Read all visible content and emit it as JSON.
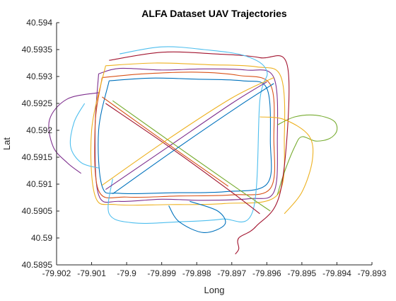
{
  "chart_data": {
    "type": "line",
    "title": "ALFA Dataset UAV Trajectories",
    "xlabel": "Long",
    "ylabel": "Lat",
    "xlim": [
      -79.902,
      -79.893
    ],
    "ylim": [
      40.5895,
      40.594
    ],
    "xticks": [
      -79.902,
      -79.901,
      -79.9,
      -79.899,
      -79.898,
      -79.897,
      -79.896,
      -79.895,
      -79.894,
      -79.893
    ],
    "xtick_labels": [
      "-79.902",
      "-79.901",
      "-79.9",
      "-79.899",
      "-79.898",
      "-79.897",
      "-79.896",
      "-79.895",
      "-79.894",
      "-79.893"
    ],
    "yticks": [
      40.5895,
      40.59,
      40.5905,
      40.591,
      40.5915,
      40.592,
      40.5925,
      40.593,
      40.5935,
      40.594
    ],
    "ytick_labels": [
      "40.5895",
      "40.59",
      "40.5905",
      "40.591",
      "40.5915",
      "40.592",
      "40.5925",
      "40.593",
      "40.5935",
      "40.594"
    ],
    "grid": false,
    "legend": "none",
    "series": [
      {
        "color": "#7E2F8E",
        "x": [
          -79.9008,
          -79.9002,
          -79.899,
          -79.8978,
          -79.8966,
          -79.8958,
          -79.8957,
          -79.8958,
          -79.8965,
          -79.8978,
          -79.899,
          -79.9002,
          -79.9008,
          -79.9009,
          -79.9008
        ],
        "y": [
          40.59305,
          40.59315,
          40.59312,
          40.59314,
          40.59312,
          40.59298,
          40.5918,
          40.59085,
          40.59073,
          40.5907,
          40.59072,
          40.59068,
          40.5908,
          40.592,
          40.59305
        ]
      },
      {
        "color": "#D95319",
        "x": [
          -79.9007,
          -79.8995,
          -79.898,
          -79.8968,
          -79.8959,
          -79.8958,
          -79.8959,
          -79.897,
          -79.8985,
          -79.9,
          -79.9008,
          -79.9009,
          -79.9007
        ],
        "y": [
          40.59298,
          40.59305,
          40.59308,
          40.59302,
          40.59285,
          40.59185,
          40.59092,
          40.5908,
          40.59078,
          40.59076,
          40.59088,
          40.5921,
          40.59298
        ]
      },
      {
        "color": "#EDB120",
        "x": [
          -79.9006,
          -79.8992,
          -79.8977,
          -79.8963,
          -79.8956,
          -79.8955,
          -79.8957,
          -79.8972,
          -79.8988,
          -79.9003,
          -79.9009,
          -79.901,
          -79.9006
        ],
        "y": [
          40.5932,
          40.59325,
          40.59322,
          40.59318,
          40.593,
          40.5919,
          40.5908,
          40.59064,
          40.59062,
          40.59062,
          40.59078,
          40.592,
          40.5932
        ]
      },
      {
        "color": "#0072BD",
        "x": [
          -79.9005,
          -79.8993,
          -79.898,
          -79.8967,
          -79.896,
          -79.8959,
          -79.896,
          -79.8972,
          -79.8987,
          -79.9002,
          -79.9007,
          -79.9008,
          -79.9005
        ],
        "y": [
          40.59292,
          40.59297,
          40.59295,
          40.59292,
          40.59278,
          40.5918,
          40.591,
          40.59086,
          40.59084,
          40.59083,
          40.59096,
          40.592,
          40.59292
        ]
      },
      {
        "color": "#77AC30",
        "x": [
          -79.8957,
          -79.8952,
          -79.8946,
          -79.8941,
          -79.894,
          -79.8942,
          -79.8946,
          -79.895,
          -79.8952,
          -79.8955,
          -79.8957
        ],
        "y": [
          40.5921,
          40.59225,
          40.59228,
          40.59218,
          40.592,
          40.59185,
          40.5918,
          40.59188,
          40.5917,
          40.59122,
          40.5908
        ]
      },
      {
        "color": "#A2142F",
        "x": [
          -79.9005,
          -79.899,
          -79.8975,
          -79.8962,
          -79.8954,
          -79.8956,
          -79.8963,
          -79.8968,
          -79.8968,
          -79.8969
        ],
        "y": [
          40.5933,
          40.59345,
          40.59342,
          40.59335,
          40.59315,
          40.5909,
          40.59022,
          40.59,
          40.5898,
          40.5897
        ]
      },
      {
        "color": "#4DBEEE",
        "x": [
          -79.9002,
          -79.899,
          -79.8978,
          -79.8966,
          -79.896,
          -79.8962,
          -79.8964,
          -79.8973,
          -79.8985,
          -79.8998,
          -79.9005,
          -79.9004
        ],
        "y": [
          40.59342,
          40.59355,
          40.5935,
          40.59338,
          40.5931,
          40.59255,
          40.5905,
          40.59035,
          40.5903,
          40.59028,
          40.59045,
          40.5911
        ]
      },
      {
        "color": "#A2142F",
        "x": [
          -79.9006,
          -79.8988,
          -79.897,
          -79.8962
        ],
        "y": [
          40.5925,
          40.5917,
          40.59085,
          40.59045
        ]
      },
      {
        "color": "#7E2F8E",
        "x": [
          -79.9006,
          -79.8988,
          -79.897,
          -79.896
        ],
        "y": [
          40.5909,
          40.5917,
          40.5925,
          40.5929
        ]
      },
      {
        "color": "#77AC30",
        "x": [
          -79.9004,
          -79.8986,
          -79.8968,
          -79.8959
        ],
        "y": [
          40.59255,
          40.59172,
          40.5909,
          40.5905
        ]
      },
      {
        "color": "#0072BD",
        "x": [
          -79.9004,
          -79.8986,
          -79.8968,
          -79.8958
        ],
        "y": [
          40.59082,
          40.59165,
          40.59245,
          40.59287
        ]
      },
      {
        "color": "#D95319",
        "x": [
          -79.9007,
          -79.8989,
          -79.8971
        ],
        "y": [
          40.59262,
          40.59178,
          40.59096
        ]
      },
      {
        "color": "#EDB120",
        "x": [
          -79.9007,
          -79.8989,
          -79.897,
          -79.8958
        ],
        "y": [
          40.59098,
          40.5918,
          40.5926,
          40.59298
        ]
      },
      {
        "color": "#4DBEEE",
        "x": [
          -79.9012,
          -79.9015,
          -79.9016,
          -79.9013,
          -79.9008
        ],
        "y": [
          40.5925,
          40.59215,
          40.5917,
          40.5914,
          40.5913
        ]
      },
      {
        "color": "#7E2F8E",
        "x": [
          -79.9008,
          -79.9017,
          -79.9022,
          -79.9021,
          -79.9017,
          -79.9013
        ],
        "y": [
          40.5927,
          40.59258,
          40.5922,
          40.5917,
          40.5914,
          40.5912
        ]
      },
      {
        "color": "#0072BD",
        "x": [
          -79.8988,
          -79.8985,
          -79.8978,
          -79.8972,
          -79.8974,
          -79.8982
        ],
        "y": [
          40.5906,
          40.5903,
          40.5901,
          40.59025,
          40.5905,
          40.59068
        ]
      },
      {
        "color": "#EDB120",
        "x": [
          -79.8962,
          -79.8955,
          -79.8948,
          -79.8947,
          -79.895,
          -79.8955
        ],
        "y": [
          40.59225,
          40.5922,
          40.5919,
          40.59145,
          40.59085,
          40.59045
        ]
      }
    ]
  }
}
